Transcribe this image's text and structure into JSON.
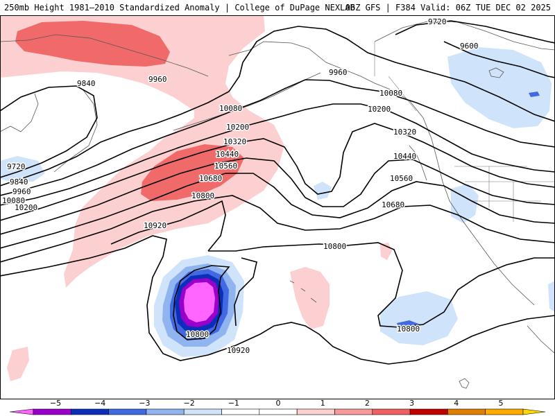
{
  "header": {
    "title": "250mb Height 1981–2010 Standardized Anomaly | College of DuPage NEXLAB",
    "run_info": "06Z GFS | F384 Valid: 06Z TUE DEC 02 2025"
  },
  "contour_labels": [
    {
      "id": "9720-ne",
      "text": "9720"
    },
    {
      "id": "9600-ne",
      "text": "9600"
    },
    {
      "id": "9960-gulf",
      "text": "9960"
    },
    {
      "id": "10080-bc",
      "text": "10080"
    },
    {
      "id": "10200-bc",
      "text": "10200"
    },
    {
      "id": "10320-bc",
      "text": "10320"
    },
    {
      "id": "10440-bc",
      "text": "10440"
    },
    {
      "id": "10560-bc",
      "text": "10560"
    },
    {
      "id": "10680-bc",
      "text": "10680"
    },
    {
      "id": "9840-bering",
      "text": "9840"
    },
    {
      "id": "9960-bering",
      "text": "9960"
    },
    {
      "id": "10080-mid",
      "text": "10080"
    },
    {
      "id": "10200-mid",
      "text": "10200"
    },
    {
      "id": "10320-mid",
      "text": "10320"
    },
    {
      "id": "10440-mid",
      "text": "10440"
    },
    {
      "id": "10560-mid",
      "text": "10560"
    },
    {
      "id": "10680-mid",
      "text": "10680"
    },
    {
      "id": "10800-mid",
      "text": "10800"
    },
    {
      "id": "10920-mid",
      "text": "10920"
    },
    {
      "id": "9720-w",
      "text": "9720"
    },
    {
      "id": "9840-w",
      "text": "9840"
    },
    {
      "id": "9960-w",
      "text": "9960"
    },
    {
      "id": "10080-w",
      "text": "10080"
    },
    {
      "id": "10200-w",
      "text": "10200"
    },
    {
      "id": "10800-center",
      "text": "10800"
    },
    {
      "id": "10800-low",
      "text": "10800"
    },
    {
      "id": "10920-low",
      "text": "10920"
    },
    {
      "id": "10800-east",
      "text": "10800"
    }
  ],
  "colorbar": {
    "ticks": [
      "−5",
      "−4",
      "−3",
      "−2",
      "−1",
      "0",
      "1",
      "2",
      "3",
      "4",
      "5"
    ],
    "colors": [
      "#ff66ff",
      "#9900cc",
      "#0b2fb8",
      "#4169e1",
      "#8fb4f0",
      "#cfe3fb",
      "#ffffff",
      "#ffffff",
      "#fcd0d0",
      "#f99a9a",
      "#f06060",
      "#c00000",
      "#e08000",
      "#ffaa00",
      "#ffd700"
    ]
  }
}
